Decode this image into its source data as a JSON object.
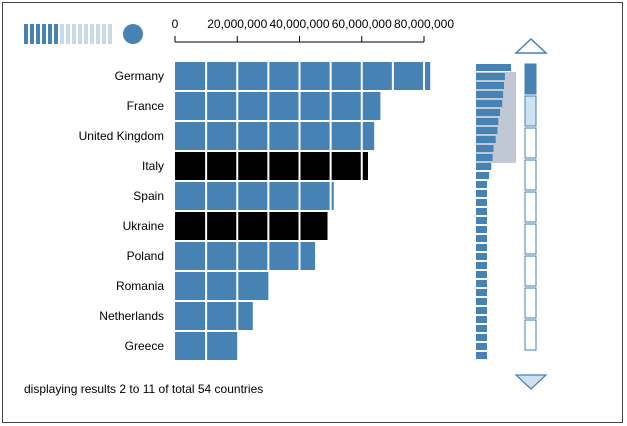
{
  "chart_data": {
    "type": "bar",
    "orientation": "horizontal",
    "categories": [
      "Germany",
      "France",
      "United Kingdom",
      "Italy",
      "Spain",
      "Ukraine",
      "Poland",
      "Romania",
      "Netherlands",
      "Greece"
    ],
    "values": [
      82000000,
      66000000,
      64000000,
      62000000,
      51000000,
      49000000,
      45000000,
      30000000,
      25000000,
      20000000
    ],
    "highlighted": [
      "Italy",
      "Ukraine"
    ],
    "xticks": [
      "0",
      "20,000,000",
      "40,000,000",
      "60,000,000",
      "80,000,000"
    ],
    "xlim": [
      0,
      80000000
    ],
    "grid": false,
    "colors": {
      "bar": "#4682b4",
      "highlight": "#000000",
      "segment_divider": "#ffffff"
    }
  },
  "overview": {
    "values": [
      80000000,
      66000000,
      64000000,
      62000000,
      60000000,
      55000000,
      51000000,
      49000000,
      45000000,
      40000000,
      38000000,
      35000000,
      30000000,
      25000000,
      20000000,
      18000000
    ],
    "remaining_count": 38,
    "selection_start": 1,
    "selection_count": 10,
    "colors": {
      "bar": "#4682b4",
      "selection": "#c0c8d6"
    }
  },
  "pager": {
    "pages": 9,
    "current_page": 0,
    "hover_page": 1,
    "colors": {
      "active": "#4682b4",
      "hover": "#cfe0f0",
      "border": "#4682b4"
    }
  },
  "zoom_slider": {
    "levels": 15,
    "active_levels": 6,
    "colors": {
      "active": "#4682b4",
      "inactive": "#c8d9e8"
    }
  },
  "footer": {
    "text": "displaying results 2 to 11 of total 54 countries"
  }
}
